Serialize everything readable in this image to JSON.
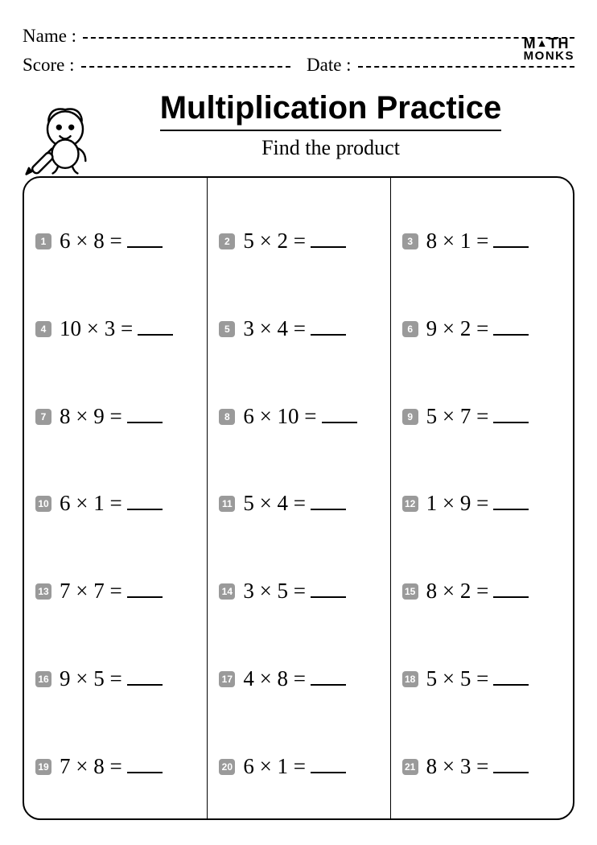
{
  "header": {
    "name_label": "Name :",
    "score_label": "Score :",
    "date_label": "Date :"
  },
  "logo": {
    "line1": "M",
    "line1_accent": "▲",
    "line1_end": "TH",
    "line2": "MONKS"
  },
  "title": "Multiplication Practice",
  "subtitle": "Find the product",
  "columns": [
    [
      {
        "n": "1",
        "a": "6",
        "b": "8"
      },
      {
        "n": "4",
        "a": "10",
        "b": "3"
      },
      {
        "n": "7",
        "a": "8",
        "b": "9"
      },
      {
        "n": "10",
        "a": "6",
        "b": "1"
      },
      {
        "n": "13",
        "a": "7",
        "b": "7"
      },
      {
        "n": "16",
        "a": "9",
        "b": "5"
      },
      {
        "n": "19",
        "a": "7",
        "b": "8"
      }
    ],
    [
      {
        "n": "2",
        "a": "5",
        "b": "2"
      },
      {
        "n": "5",
        "a": "3",
        "b": "4"
      },
      {
        "n": "8",
        "a": "6",
        "b": "10"
      },
      {
        "n": "11",
        "a": "5",
        "b": "4"
      },
      {
        "n": "14",
        "a": "3",
        "b": "5"
      },
      {
        "n": "17",
        "a": "4",
        "b": "8"
      },
      {
        "n": "20",
        "a": "6",
        "b": "1"
      }
    ],
    [
      {
        "n": "3",
        "a": "8",
        "b": "1"
      },
      {
        "n": "6",
        "a": "9",
        "b": "2"
      },
      {
        "n": "9",
        "a": "5",
        "b": "7"
      },
      {
        "n": "12",
        "a": "1",
        "b": "9"
      },
      {
        "n": "15",
        "a": "8",
        "b": "2"
      },
      {
        "n": "18",
        "a": "5",
        "b": "5"
      },
      {
        "n": "21",
        "a": "8",
        "b": "3"
      }
    ]
  ],
  "style": {
    "badge_bg": "#9a9a9a",
    "badge_fg": "#ffffff",
    "border_color": "#000000",
    "page_bg": "#ffffff",
    "title_fontsize": 40,
    "problem_fontsize": 27,
    "grid_radius": 22
  }
}
